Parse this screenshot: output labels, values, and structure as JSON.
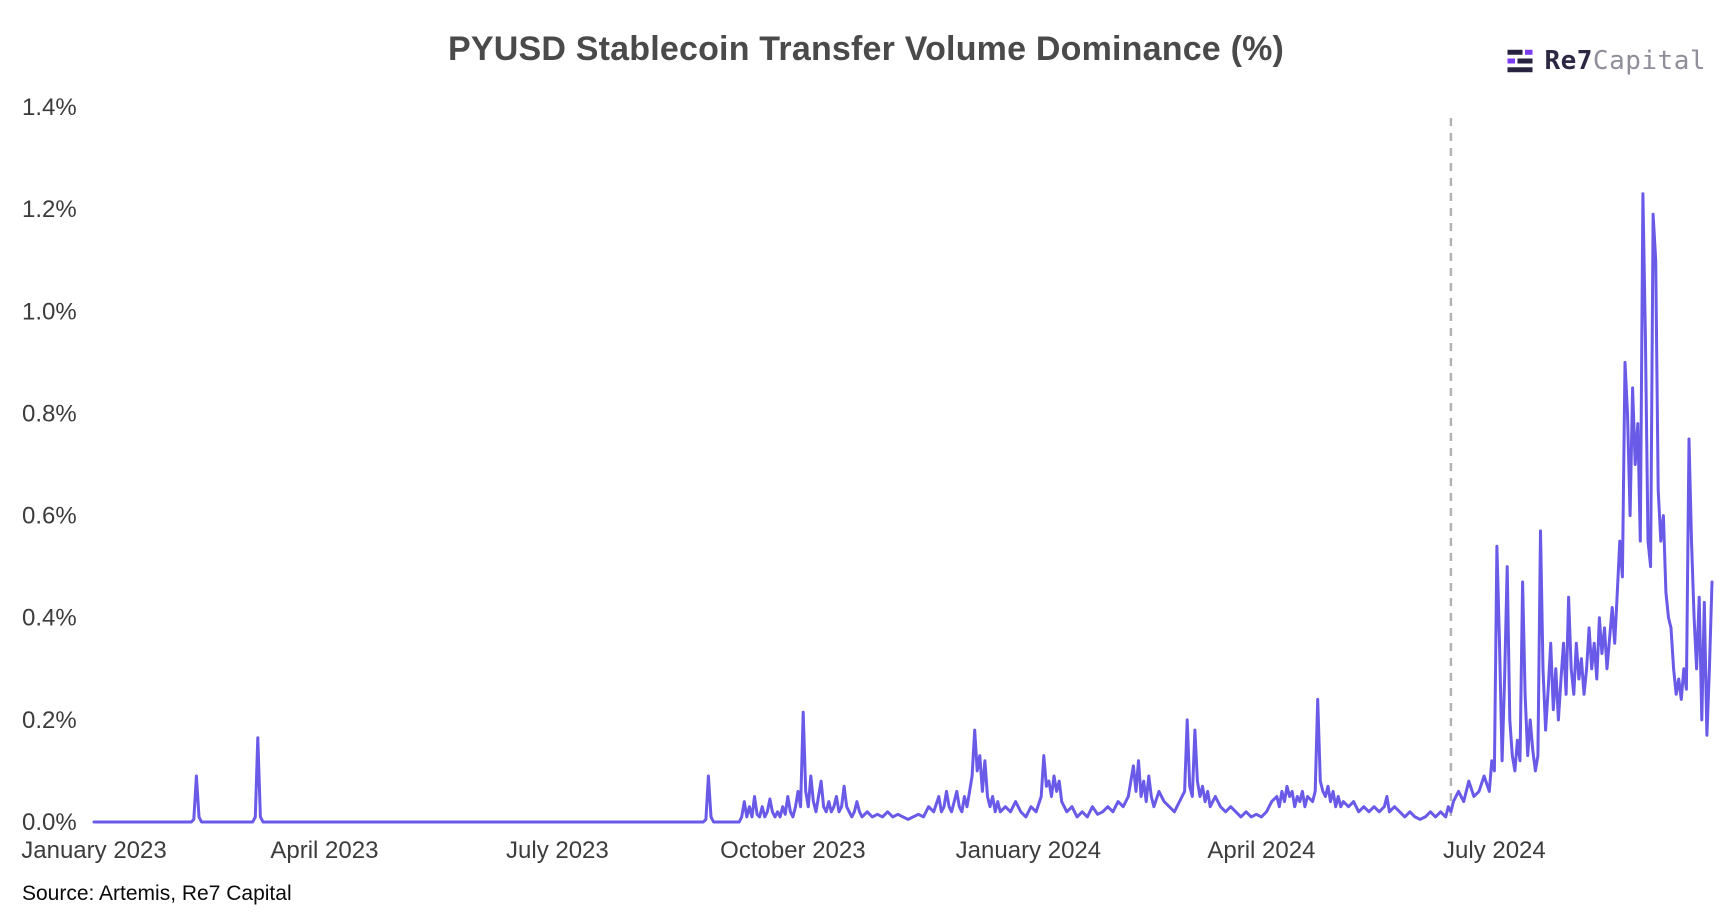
{
  "header": {
    "title": "PYUSD Stablecoin Transfer Volume Dominance (%)",
    "logo": {
      "icon": "re7-bars-icon",
      "name_bold": "Re7",
      "name_light": "Capital"
    }
  },
  "footer": {
    "source": "Source: Artemis, Re7 Capital"
  },
  "chart_data": {
    "type": "line",
    "title": "PYUSD Stablecoin Transfer Volume Dominance (%)",
    "series_name": "PYUSD transfer volume dominance",
    "unit": "%",
    "grid": false,
    "legend": "none",
    "line_color": "#6A5AE8",
    "x_encoding": "days since 2023-01-01",
    "x_domain": [
      0,
      632
    ],
    "ylim": [
      0,
      1.4
    ],
    "x_ticks": [
      {
        "day": 0,
        "label": "January 2023"
      },
      {
        "day": 90,
        "label": "April 2023"
      },
      {
        "day": 181,
        "label": "July 2023"
      },
      {
        "day": 273,
        "label": "October 2023"
      },
      {
        "day": 365,
        "label": "January 2024"
      },
      {
        "day": 456,
        "label": "April 2024"
      },
      {
        "day": 547,
        "label": "July 2024"
      }
    ],
    "y_ticks": [
      {
        "value": 0.0,
        "label": "0.0%"
      },
      {
        "value": 0.2,
        "label": "0.2%"
      },
      {
        "value": 0.4,
        "label": "0.4%"
      },
      {
        "value": 0.6,
        "label": "0.6%"
      },
      {
        "value": 0.8,
        "label": "0.8%"
      },
      {
        "value": 1.0,
        "label": "1.0%"
      },
      {
        "value": 1.2,
        "label": "1.2%"
      },
      {
        "value": 1.4,
        "label": "1.4%"
      }
    ],
    "annotation_line": {
      "day": 530,
      "style": "dashed",
      "color": "#B3B3B3"
    },
    "points": [
      [
        0,
        0
      ],
      [
        12,
        0
      ],
      [
        24,
        0
      ],
      [
        38,
        0
      ],
      [
        39,
        0.005
      ],
      [
        40,
        0.09
      ],
      [
        41,
        0.01
      ],
      [
        42,
        0
      ],
      [
        52,
        0
      ],
      [
        62,
        0
      ],
      [
        63,
        0.01
      ],
      [
        64,
        0.165
      ],
      [
        65,
        0.01
      ],
      [
        66,
        0
      ],
      [
        80,
        0
      ],
      [
        100,
        0
      ],
      [
        120,
        0
      ],
      [
        140,
        0
      ],
      [
        160,
        0
      ],
      [
        180,
        0
      ],
      [
        200,
        0
      ],
      [
        220,
        0
      ],
      [
        238,
        0
      ],
      [
        239,
        0.005
      ],
      [
        240,
        0.09
      ],
      [
        241,
        0.01
      ],
      [
        242,
        0
      ],
      [
        248,
        0
      ],
      [
        252,
        0
      ],
      [
        253,
        0.01
      ],
      [
        254,
        0.04
      ],
      [
        255,
        0.01
      ],
      [
        256,
        0.03
      ],
      [
        257,
        0.01
      ],
      [
        258,
        0.05
      ],
      [
        259,
        0.015
      ],
      [
        260,
        0.01
      ],
      [
        261,
        0.03
      ],
      [
        262,
        0.01
      ],
      [
        263,
        0.02
      ],
      [
        264,
        0.045
      ],
      [
        265,
        0.02
      ],
      [
        266,
        0.01
      ],
      [
        267,
        0.02
      ],
      [
        268,
        0.01
      ],
      [
        269,
        0.03
      ],
      [
        270,
        0.015
      ],
      [
        271,
        0.05
      ],
      [
        272,
        0.02
      ],
      [
        273,
        0.01
      ],
      [
        274,
        0.03
      ],
      [
        275,
        0.06
      ],
      [
        276,
        0.03
      ],
      [
        277,
        0.215
      ],
      [
        278,
        0.06
      ],
      [
        279,
        0.03
      ],
      [
        280,
        0.09
      ],
      [
        281,
        0.04
      ],
      [
        282,
        0.02
      ],
      [
        283,
        0.05
      ],
      [
        284,
        0.08
      ],
      [
        285,
        0.03
      ],
      [
        286,
        0.02
      ],
      [
        287,
        0.04
      ],
      [
        288,
        0.02
      ],
      [
        289,
        0.03
      ],
      [
        290,
        0.05
      ],
      [
        291,
        0.02
      ],
      [
        292,
        0.03
      ],
      [
        293,
        0.07
      ],
      [
        294,
        0.03
      ],
      [
        295,
        0.02
      ],
      [
        296,
        0.01
      ],
      [
        297,
        0.02
      ],
      [
        298,
        0.04
      ],
      [
        299,
        0.02
      ],
      [
        300,
        0.01
      ],
      [
        302,
        0.02
      ],
      [
        304,
        0.01
      ],
      [
        306,
        0.015
      ],
      [
        308,
        0.01
      ],
      [
        310,
        0.02
      ],
      [
        312,
        0.01
      ],
      [
        314,
        0.015
      ],
      [
        316,
        0.01
      ],
      [
        318,
        0.005
      ],
      [
        320,
        0.01
      ],
      [
        322,
        0.015
      ],
      [
        324,
        0.01
      ],
      [
        326,
        0.03
      ],
      [
        328,
        0.02
      ],
      [
        330,
        0.05
      ],
      [
        331,
        0.02
      ],
      [
        332,
        0.03
      ],
      [
        333,
        0.06
      ],
      [
        334,
        0.03
      ],
      [
        335,
        0.02
      ],
      [
        336,
        0.04
      ],
      [
        337,
        0.06
      ],
      [
        338,
        0.03
      ],
      [
        339,
        0.02
      ],
      [
        340,
        0.05
      ],
      [
        341,
        0.03
      ],
      [
        342,
        0.06
      ],
      [
        343,
        0.09
      ],
      [
        344,
        0.18
      ],
      [
        345,
        0.1
      ],
      [
        346,
        0.13
      ],
      [
        347,
        0.06
      ],
      [
        348,
        0.12
      ],
      [
        349,
        0.05
      ],
      [
        350,
        0.03
      ],
      [
        351,
        0.05
      ],
      [
        352,
        0.02
      ],
      [
        353,
        0.04
      ],
      [
        354,
        0.02
      ],
      [
        356,
        0.03
      ],
      [
        358,
        0.02
      ],
      [
        360,
        0.04
      ],
      [
        362,
        0.02
      ],
      [
        364,
        0.01
      ],
      [
        366,
        0.03
      ],
      [
        368,
        0.02
      ],
      [
        370,
        0.05
      ],
      [
        371,
        0.13
      ],
      [
        372,
        0.07
      ],
      [
        373,
        0.08
      ],
      [
        374,
        0.05
      ],
      [
        375,
        0.09
      ],
      [
        376,
        0.06
      ],
      [
        377,
        0.08
      ],
      [
        378,
        0.04
      ],
      [
        380,
        0.02
      ],
      [
        382,
        0.03
      ],
      [
        384,
        0.01
      ],
      [
        386,
        0.02
      ],
      [
        388,
        0.01
      ],
      [
        390,
        0.03
      ],
      [
        392,
        0.015
      ],
      [
        394,
        0.02
      ],
      [
        396,
        0.03
      ],
      [
        398,
        0.02
      ],
      [
        400,
        0.04
      ],
      [
        402,
        0.03
      ],
      [
        404,
        0.05
      ],
      [
        406,
        0.11
      ],
      [
        407,
        0.06
      ],
      [
        408,
        0.12
      ],
      [
        409,
        0.05
      ],
      [
        410,
        0.08
      ],
      [
        411,
        0.04
      ],
      [
        412,
        0.09
      ],
      [
        413,
        0.05
      ],
      [
        414,
        0.03
      ],
      [
        416,
        0.06
      ],
      [
        418,
        0.04
      ],
      [
        420,
        0.03
      ],
      [
        422,
        0.02
      ],
      [
        424,
        0.04
      ],
      [
        426,
        0.06
      ],
      [
        427,
        0.2
      ],
      [
        428,
        0.07
      ],
      [
        429,
        0.05
      ],
      [
        430,
        0.18
      ],
      [
        431,
        0.08
      ],
      [
        432,
        0.05
      ],
      [
        433,
        0.07
      ],
      [
        434,
        0.04
      ],
      [
        435,
        0.06
      ],
      [
        436,
        0.03
      ],
      [
        438,
        0.05
      ],
      [
        440,
        0.03
      ],
      [
        442,
        0.02
      ],
      [
        444,
        0.03
      ],
      [
        446,
        0.02
      ],
      [
        448,
        0.01
      ],
      [
        450,
        0.02
      ],
      [
        452,
        0.01
      ],
      [
        454,
        0.015
      ],
      [
        456,
        0.01
      ],
      [
        458,
        0.02
      ],
      [
        460,
        0.04
      ],
      [
        462,
        0.05
      ],
      [
        463,
        0.03
      ],
      [
        464,
        0.06
      ],
      [
        465,
        0.04
      ],
      [
        466,
        0.07
      ],
      [
        467,
        0.05
      ],
      [
        468,
        0.06
      ],
      [
        469,
        0.03
      ],
      [
        470,
        0.05
      ],
      [
        471,
        0.04
      ],
      [
        472,
        0.06
      ],
      [
        473,
        0.03
      ],
      [
        474,
        0.05
      ],
      [
        476,
        0.04
      ],
      [
        477,
        0.06
      ],
      [
        478,
        0.24
      ],
      [
        479,
        0.08
      ],
      [
        480,
        0.06
      ],
      [
        481,
        0.05
      ],
      [
        482,
        0.07
      ],
      [
        483,
        0.04
      ],
      [
        484,
        0.06
      ],
      [
        485,
        0.03
      ],
      [
        486,
        0.05
      ],
      [
        487,
        0.03
      ],
      [
        488,
        0.04
      ],
      [
        490,
        0.03
      ],
      [
        492,
        0.04
      ],
      [
        494,
        0.02
      ],
      [
        496,
        0.03
      ],
      [
        498,
        0.02
      ],
      [
        500,
        0.03
      ],
      [
        502,
        0.02
      ],
      [
        504,
        0.03
      ],
      [
        505,
        0.05
      ],
      [
        506,
        0.02
      ],
      [
        508,
        0.03
      ],
      [
        510,
        0.02
      ],
      [
        512,
        0.01
      ],
      [
        514,
        0.02
      ],
      [
        516,
        0.01
      ],
      [
        518,
        0.005
      ],
      [
        520,
        0.01
      ],
      [
        522,
        0.02
      ],
      [
        524,
        0.01
      ],
      [
        526,
        0.02
      ],
      [
        528,
        0.01
      ],
      [
        529,
        0.03
      ],
      [
        530,
        0.02
      ],
      [
        531,
        0.04
      ],
      [
        533,
        0.06
      ],
      [
        535,
        0.04
      ],
      [
        537,
        0.08
      ],
      [
        539,
        0.05
      ],
      [
        541,
        0.06
      ],
      [
        543,
        0.09
      ],
      [
        545,
        0.06
      ],
      [
        546,
        0.12
      ],
      [
        547,
        0.1
      ],
      [
        548,
        0.54
      ],
      [
        549,
        0.35
      ],
      [
        550,
        0.12
      ],
      [
        551,
        0.28
      ],
      [
        552,
        0.5
      ],
      [
        553,
        0.2
      ],
      [
        554,
        0.13
      ],
      [
        555,
        0.1
      ],
      [
        556,
        0.16
      ],
      [
        557,
        0.12
      ],
      [
        558,
        0.47
      ],
      [
        559,
        0.25
      ],
      [
        560,
        0.13
      ],
      [
        561,
        0.2
      ],
      [
        562,
        0.14
      ],
      [
        563,
        0.1
      ],
      [
        564,
        0.13
      ],
      [
        565,
        0.57
      ],
      [
        566,
        0.3
      ],
      [
        567,
        0.18
      ],
      [
        568,
        0.26
      ],
      [
        569,
        0.35
      ],
      [
        570,
        0.22
      ],
      [
        571,
        0.3
      ],
      [
        572,
        0.2
      ],
      [
        573,
        0.28
      ],
      [
        574,
        0.35
      ],
      [
        575,
        0.25
      ],
      [
        576,
        0.44
      ],
      [
        577,
        0.3
      ],
      [
        578,
        0.25
      ],
      [
        579,
        0.35
      ],
      [
        580,
        0.28
      ],
      [
        581,
        0.32
      ],
      [
        582,
        0.25
      ],
      [
        583,
        0.3
      ],
      [
        584,
        0.38
      ],
      [
        585,
        0.3
      ],
      [
        586,
        0.35
      ],
      [
        587,
        0.28
      ],
      [
        588,
        0.4
      ],
      [
        589,
        0.33
      ],
      [
        590,
        0.38
      ],
      [
        591,
        0.3
      ],
      [
        592,
        0.36
      ],
      [
        593,
        0.42
      ],
      [
        594,
        0.35
      ],
      [
        595,
        0.45
      ],
      [
        596,
        0.55
      ],
      [
        597,
        0.48
      ],
      [
        598,
        0.9
      ],
      [
        599,
        0.8
      ],
      [
        600,
        0.6
      ],
      [
        601,
        0.85
      ],
      [
        602,
        0.7
      ],
      [
        603,
        0.78
      ],
      [
        604,
        0.55
      ],
      [
        605,
        1.23
      ],
      [
        606,
        0.95
      ],
      [
        607,
        0.55
      ],
      [
        608,
        0.5
      ],
      [
        609,
        1.19
      ],
      [
        610,
        1.1
      ],
      [
        611,
        0.65
      ],
      [
        612,
        0.55
      ],
      [
        613,
        0.6
      ],
      [
        614,
        0.45
      ],
      [
        615,
        0.4
      ],
      [
        616,
        0.38
      ],
      [
        617,
        0.3
      ],
      [
        618,
        0.25
      ],
      [
        619,
        0.28
      ],
      [
        620,
        0.24
      ],
      [
        621,
        0.3
      ],
      [
        622,
        0.26
      ],
      [
        623,
        0.75
      ],
      [
        624,
        0.55
      ],
      [
        625,
        0.4
      ],
      [
        626,
        0.3
      ],
      [
        627,
        0.44
      ],
      [
        628,
        0.2
      ],
      [
        629,
        0.43
      ],
      [
        630,
        0.17
      ],
      [
        631,
        0.3
      ],
      [
        632,
        0.47
      ]
    ]
  }
}
